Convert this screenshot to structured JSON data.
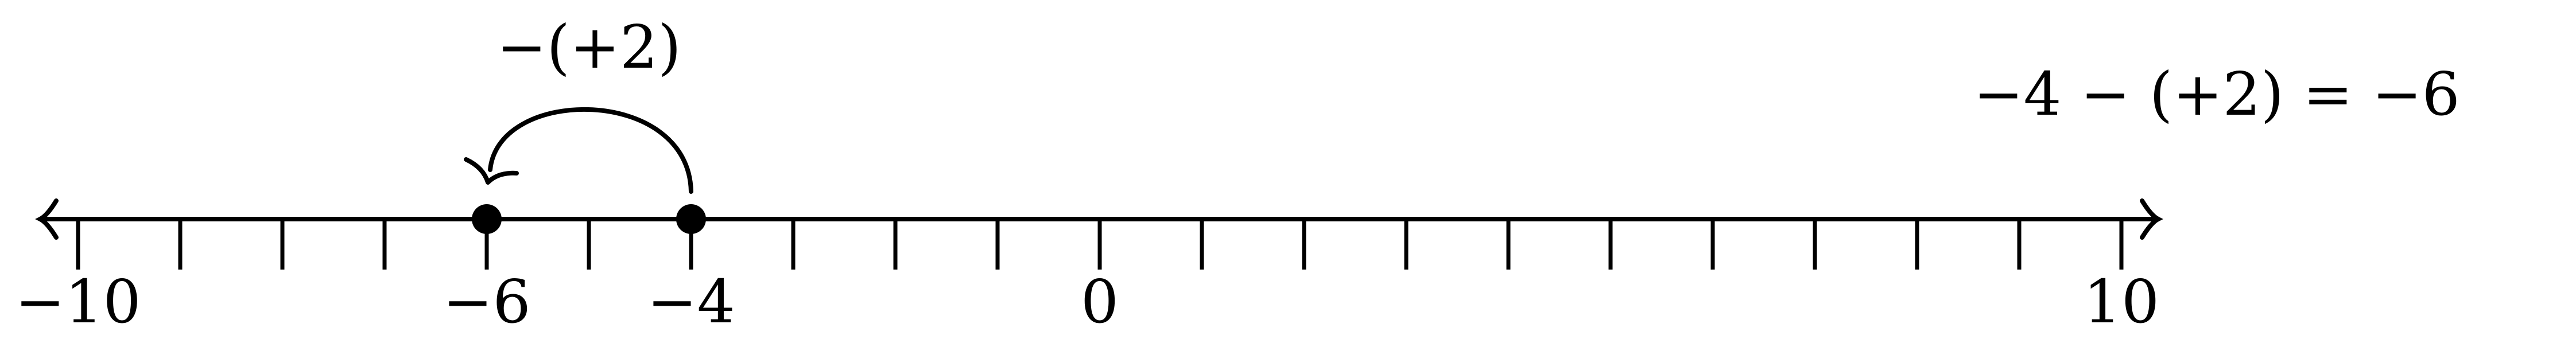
{
  "number_line": {
    "min": -10,
    "max": 10,
    "step": 1,
    "tick_labels": [
      {
        "value": -10,
        "text": "−10"
      },
      {
        "value": -6,
        "text": "−6"
      },
      {
        "value": -4,
        "text": "−4"
      },
      {
        "value": 0,
        "text": "0"
      },
      {
        "value": 10,
        "text": "10"
      }
    ],
    "points": [
      {
        "value": -6
      },
      {
        "value": -4
      }
    ],
    "jump": {
      "from": -4,
      "to": -6,
      "label": "−(+2)"
    },
    "equation": "−4 − (+2) = −6",
    "colors": {
      "ink": "#000000",
      "background": "#ffffff"
    }
  }
}
